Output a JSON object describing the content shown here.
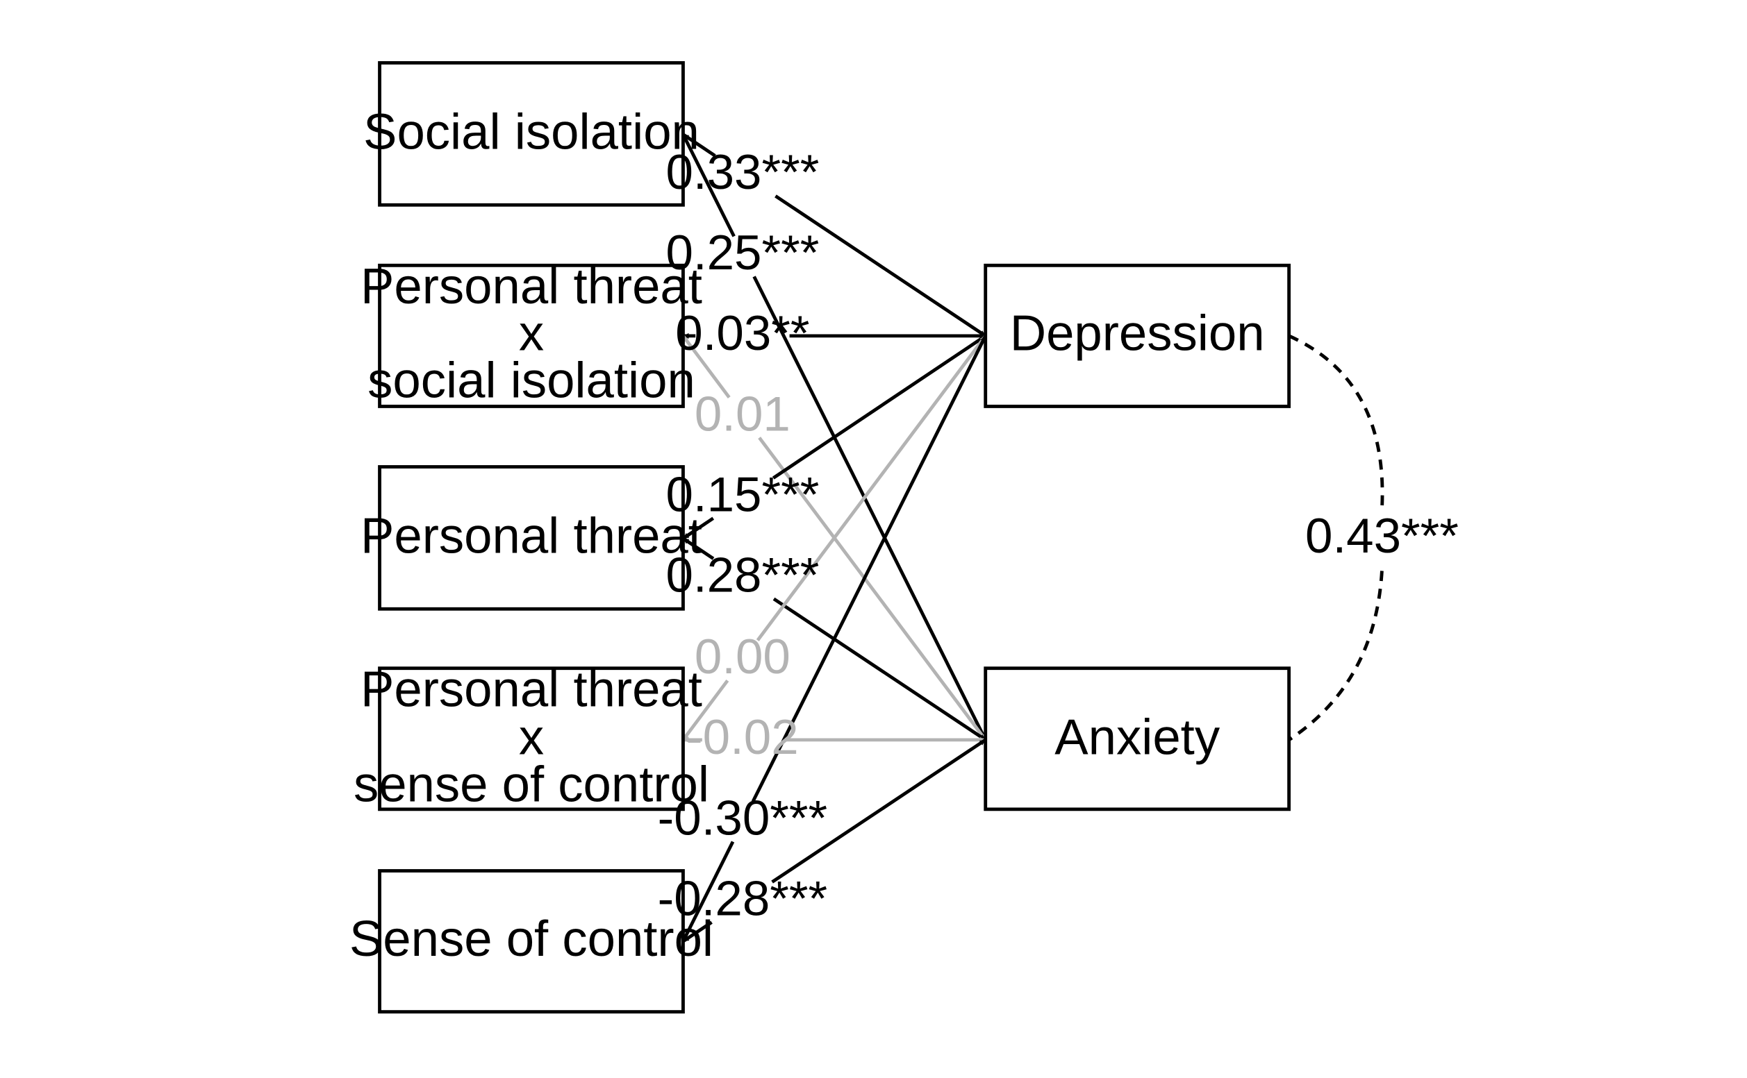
{
  "colors": {
    "significant": "#000000",
    "nonsignificant": "#b3b3b3",
    "background": "#ffffff"
  },
  "predictors": [
    {
      "id": "si",
      "lines": [
        "Social isolation"
      ]
    },
    {
      "id": "ptxsi",
      "lines": [
        "Personal threat",
        "x",
        "social isolation"
      ]
    },
    {
      "id": "pt",
      "lines": [
        "Personal threat"
      ]
    },
    {
      "id": "ptxsc",
      "lines": [
        "Personal threat",
        "x",
        "sense of control"
      ]
    },
    {
      "id": "sc",
      "lines": [
        "Sense of control"
      ]
    }
  ],
  "outcomes": [
    {
      "id": "dep",
      "lines": [
        "Depression"
      ]
    },
    {
      "id": "anx",
      "lines": [
        "Anxiety"
      ]
    }
  ],
  "paths": [
    {
      "from": "si",
      "to": "dep",
      "label": "0.33***",
      "significant": true
    },
    {
      "from": "si",
      "to": "anx",
      "label": "0.25***",
      "significant": true
    },
    {
      "from": "ptxsi",
      "to": "dep",
      "label": "0.03**",
      "significant": true
    },
    {
      "from": "ptxsi",
      "to": "anx",
      "label": "0.01",
      "significant": false
    },
    {
      "from": "pt",
      "to": "dep",
      "label": "0.15***",
      "significant": true
    },
    {
      "from": "pt",
      "to": "anx",
      "label": "0.28***",
      "significant": true
    },
    {
      "from": "ptxsc",
      "to": "dep",
      "label": "0.00",
      "significant": false
    },
    {
      "from": "ptxsc",
      "to": "anx",
      "label": "-0.02",
      "significant": false
    },
    {
      "from": "sc",
      "to": "dep",
      "label": "-0.30***",
      "significant": true
    },
    {
      "from": "sc",
      "to": "anx",
      "label": "-0.28***",
      "significant": true
    }
  ],
  "covariance": {
    "between": [
      "dep",
      "anx"
    ],
    "label": "0.43***"
  }
}
